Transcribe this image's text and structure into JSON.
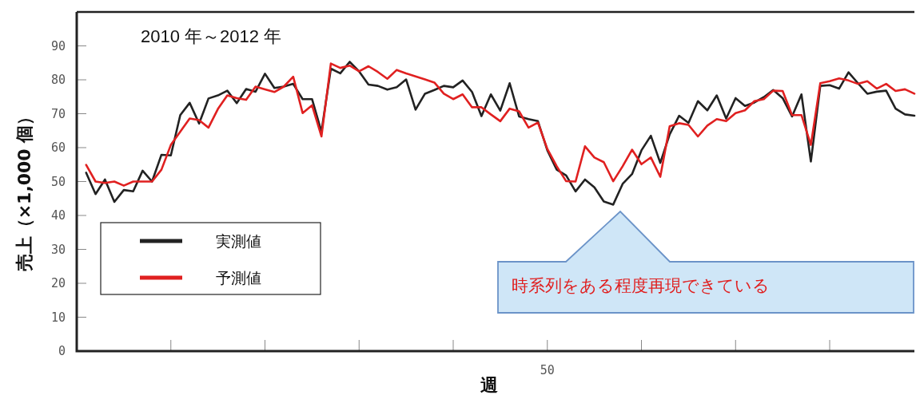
{
  "chart_data": {
    "type": "line",
    "title": "2010 年～2012 年",
    "xlabel": "週",
    "ylabel": "売上（×1,000 個）",
    "categories": [
      null,
      null,
      null,
      null,
      null,
      null,
      null,
      null,
      null,
      null,
      null,
      null,
      null,
      null,
      null,
      null,
      null,
      null,
      null,
      null,
      null,
      null,
      null,
      null,
      null,
      null,
      null,
      null,
      null,
      null,
      null,
      null,
      null,
      null,
      null,
      null,
      null,
      null,
      null,
      null,
      null,
      null,
      null,
      null,
      null,
      null,
      null,
      null,
      null,
      "50",
      null,
      null,
      null,
      null,
      null,
      null,
      null,
      null,
      null,
      null,
      null,
      null,
      null,
      null,
      null,
      null,
      null,
      null,
      null,
      null,
      null,
      null,
      null,
      null,
      null,
      null,
      null,
      null,
      null,
      null,
      null,
      null,
      null,
      null,
      null,
      null,
      null,
      null,
      null
    ],
    "series": [
      {
        "name": "実測値",
        "color": "#222222",
        "values": [
          52.6,
          46.3,
          50.6,
          44,
          47.5,
          47.1,
          53.2,
          50,
          57.9,
          57.7,
          69.6,
          73.2,
          67.1,
          74.5,
          75.4,
          76.8,
          73.1,
          77.3,
          76.5,
          81.8,
          77.6,
          78,
          78.8,
          74.3,
          74.3,
          64.7,
          83.3,
          81.9,
          85.3,
          82.5,
          78.6,
          78.2,
          77.1,
          77.8,
          80.1,
          71.2,
          75.9,
          77,
          78.2,
          77.8,
          79.8,
          76.4,
          69.3,
          75.7,
          70.9,
          79,
          69.2,
          68.4,
          67.8,
          59.2,
          53.5,
          51.8,
          47.1,
          50.6,
          48.3,
          44.1,
          43.2,
          49.3,
          52.2,
          59.2,
          63.5,
          55.5,
          63.9,
          69.4,
          67.3,
          73.7,
          71,
          75.4,
          68.6,
          74.6,
          72.3,
          73.3,
          74.9,
          77,
          74.6,
          69.2,
          75.7,
          55.9,
          78.2,
          78.4,
          77.4,
          82.2,
          79,
          75.9,
          76.5,
          76.8,
          71.5,
          69.8,
          69.4
        ]
      },
      {
        "name": "予測値",
        "color": "#e02020",
        "values": [
          54.9,
          50,
          49.6,
          50,
          48.8,
          50,
          50,
          50,
          53.5,
          60.8,
          64.7,
          68.6,
          68.1,
          65.9,
          71.4,
          75.4,
          74.6,
          74.1,
          78,
          77.2,
          76.4,
          78,
          80.9,
          70.2,
          72.5,
          63.3,
          84.8,
          83.5,
          84.2,
          82.5,
          84,
          82.3,
          80.3,
          82.9,
          81.9,
          81,
          80.1,
          79.2,
          75.9,
          74.3,
          75.7,
          71.9,
          71.9,
          69.8,
          67.8,
          71.5,
          70.7,
          65.9,
          67.4,
          59.6,
          54.5,
          50.1,
          50,
          60.4,
          57.1,
          55.7,
          50.1,
          54.5,
          59.4,
          55.1,
          57.1,
          51.4,
          66.3,
          67.2,
          66.7,
          63.3,
          66.5,
          68.4,
          67.8,
          70.2,
          71,
          73.7,
          74.3,
          76.8,
          76.7,
          69.6,
          69.6,
          60.8,
          79,
          79.6,
          80.4,
          79.8,
          78.8,
          79.6,
          77.4,
          78.8,
          76.7,
          77.2,
          75.9
        ]
      }
    ],
    "ylim": [
      0,
      100
    ],
    "yticks": [
      0,
      10,
      20,
      30,
      40,
      50,
      60,
      70,
      80,
      90
    ],
    "legend": "left",
    "annotations": [
      "時系列をある程度再現できている"
    ]
  }
}
